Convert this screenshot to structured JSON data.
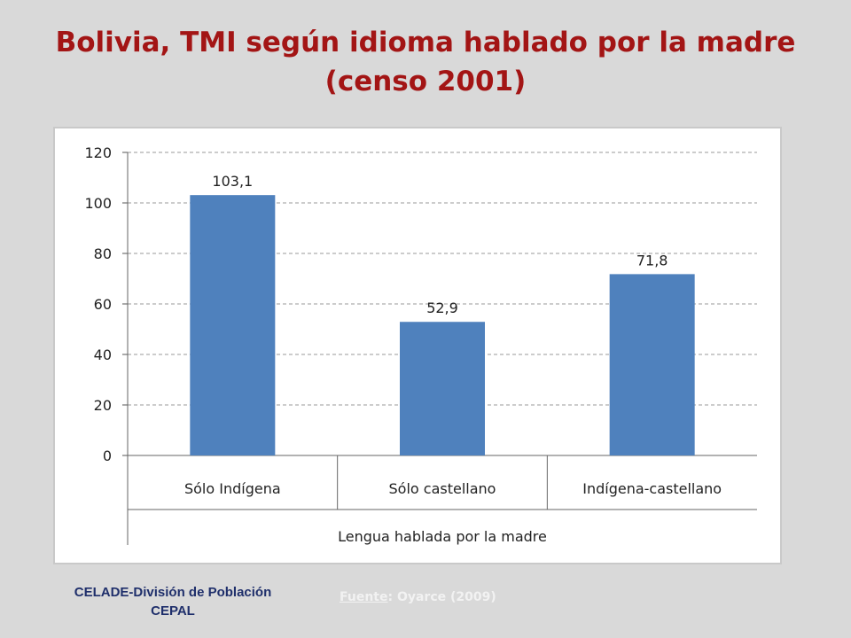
{
  "title": "Bolivia, TMI según idioma hablado por la madre (censo 2001)",
  "chart_data": {
    "type": "bar",
    "categories": [
      "Sólo Indígena",
      "Sólo castellano",
      "Indígena-castellano"
    ],
    "values": [
      103.1,
      52.9,
      71.8
    ],
    "data_labels": [
      "103,1",
      "52,9",
      "71,8"
    ],
    "xlabel": "Lengua hablada por la madre",
    "ylabel": "",
    "ylim": [
      0,
      120
    ],
    "yticks": [
      0,
      20,
      40,
      60,
      80,
      100,
      120
    ],
    "grid": "horizontal dashed",
    "bar_color": "#4f81bd"
  },
  "footer": {
    "org_line1": "CELADE-División de Población",
    "org_line2": "CEPAL",
    "source_label": "Fuente",
    "source_text": ": Oyarce (2009)"
  }
}
